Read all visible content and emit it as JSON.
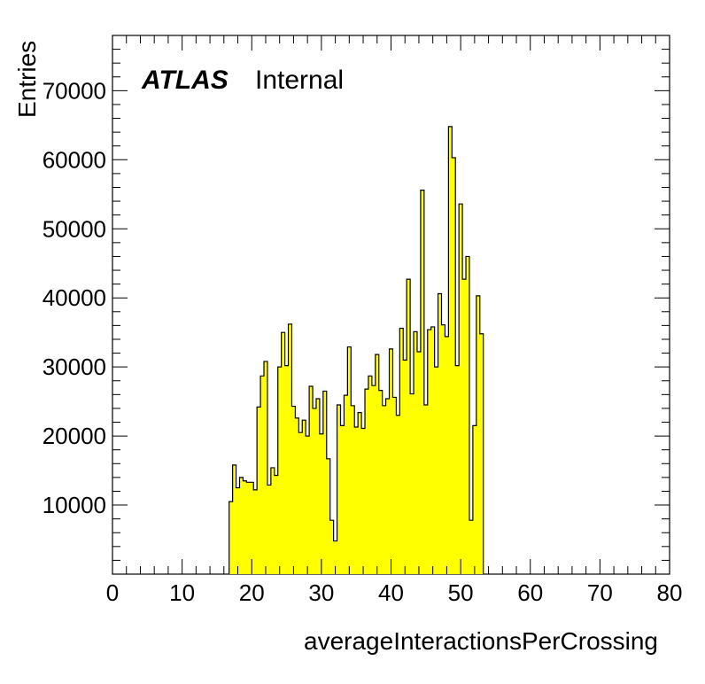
{
  "chart_data": {
    "type": "bar",
    "style": "histogram",
    "xlabel": "averageInteractionsPerCrossing",
    "ylabel": "Entries",
    "xlim": [
      0,
      80
    ],
    "ylim": [
      0,
      78000
    ],
    "x_ticks": [
      0,
      10,
      20,
      30,
      40,
      50,
      60,
      70,
      80
    ],
    "y_ticks": [
      10000,
      20000,
      30000,
      40000,
      50000,
      60000,
      70000
    ],
    "grid": false,
    "fill_color": "#ffff00",
    "line_color": "#000000",
    "bin_width": 0.5,
    "bins_start": 16.75,
    "values": [
      10500,
      15800,
      12500,
      14000,
      13500,
      13300,
      13300,
      12200,
      24200,
      28700,
      30800,
      12900,
      15400,
      14300,
      30000,
      35000,
      30200,
      36200,
      24300,
      22600,
      20500,
      22300,
      20000,
      27200,
      24000,
      25400,
      20300,
      26500,
      16700,
      7800,
      4800,
      24500,
      21500,
      25900,
      32900,
      24400,
      21300,
      23400,
      21100,
      26800,
      28700,
      27300,
      31800,
      26600,
      24400,
      25400,
      32600,
      25600,
      23000,
      35600,
      31000,
      42700,
      26100,
      35100,
      32200,
      55600,
      24500,
      35400,
      35800,
      30000,
      40600,
      36100,
      34400,
      64800,
      60300,
      30200,
      53600,
      42700,
      46000,
      7800,
      21500,
      40300,
      34800
    ],
    "annotations": {
      "atlas": "ATLAS",
      "label": "Internal"
    }
  }
}
